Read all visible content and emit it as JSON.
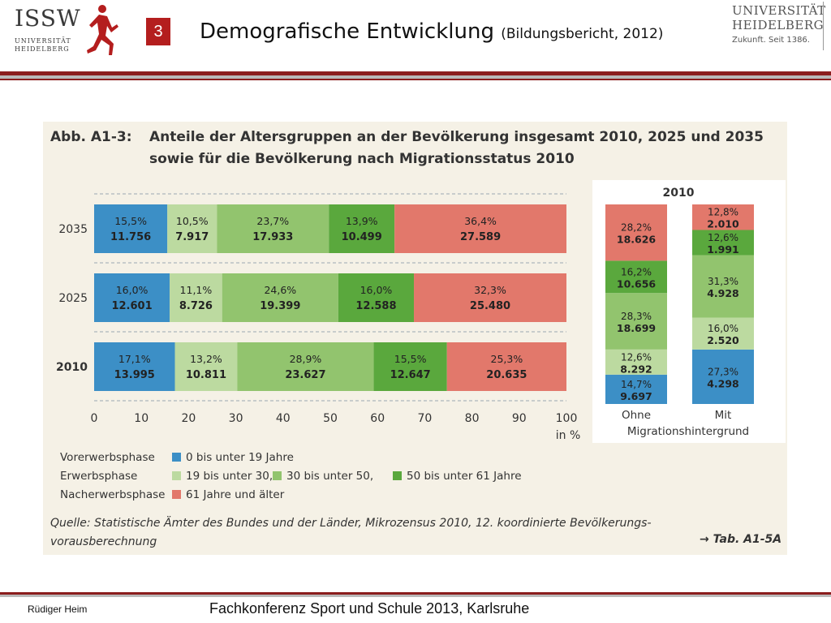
{
  "header": {
    "slide_number": "3",
    "title": "Demografische Entwicklung",
    "subtitle": "(Bildungsbericht, 2012)",
    "logo_left": {
      "name": "ISSW",
      "line1": "UNIVERSITÄT",
      "line2": "HEIDELBERG"
    },
    "logo_right": {
      "line1": "UNIVERSITÄT",
      "line2": "HEIDELBERG",
      "line3": "Zukunft. Seit 1386."
    },
    "accent_color": "#8b1d1d"
  },
  "figure": {
    "label": "Abb. A1-3:",
    "title_line1": "Anteile der Altersgruppen an der Bevölkerung insgesamt 2010, 2025 und 2035",
    "title_line2": "sowie für die Bevölkerung nach Migrationsstatus 2010",
    "x_unit": "in %"
  },
  "chart_data": [
    {
      "type": "bar",
      "orientation": "horizontal-stacked",
      "categories": [
        "2035",
        "2025",
        "2010"
      ],
      "series": [
        {
          "name": "0 bis unter 19 Jahre",
          "color": "#3c8fc6",
          "percent_labels": [
            "15,5%",
            "16,0%",
            "17,1%"
          ],
          "values": [
            15.5,
            16.0,
            17.1
          ],
          "abs_labels": [
            "11.756",
            "12.601",
            "13.995"
          ]
        },
        {
          "name": "19 bis unter 30,",
          "color": "#bcdaa0",
          "percent_labels": [
            "10,5%",
            "11,1%",
            "13,2%"
          ],
          "values": [
            10.5,
            11.1,
            13.2
          ],
          "abs_labels": [
            "7.917",
            "8.726",
            "10.811"
          ]
        },
        {
          "name": "30 bis unter 50,",
          "color": "#92c46e",
          "percent_labels": [
            "23,7%",
            "24,6%",
            "28,9%"
          ],
          "values": [
            23.7,
            24.6,
            28.9
          ],
          "abs_labels": [
            "17.933",
            "19.399",
            "23.627"
          ]
        },
        {
          "name": "50 bis unter 61 Jahre",
          "color": "#5aa83d",
          "percent_labels": [
            "13,9%",
            "16,0%",
            "15,5%"
          ],
          "values": [
            13.9,
            16.0,
            15.5
          ],
          "abs_labels": [
            "10.499",
            "12.588",
            "12.647"
          ]
        },
        {
          "name": "61 Jahre und älter",
          "color": "#e2786b",
          "percent_labels": [
            "36,4%",
            "32,3%",
            "25,3%"
          ],
          "values": [
            36.4,
            32.3,
            25.3
          ],
          "abs_labels": [
            "27.589",
            "25.480",
            "20.635"
          ]
        }
      ],
      "x_ticks": [
        "0",
        "10",
        "20",
        "30",
        "40",
        "50",
        "60",
        "70",
        "80",
        "90",
        "100"
      ],
      "xlim": [
        0,
        100
      ],
      "xlabel": "in %",
      "grid": "dashed horizontal guides"
    },
    {
      "type": "bar",
      "orientation": "vertical-stacked",
      "title": "2010",
      "categories": [
        "Ohne Migrationshintergrund",
        "Mit Migrationshintergrund"
      ],
      "category_lines": [
        [
          "Ohne",
          "Migrationshintergrund"
        ],
        [
          "Mit",
          ""
        ]
      ],
      "series": [
        {
          "name": "0 bis unter 19 Jahre",
          "color": "#3c8fc6",
          "percent_labels": [
            "14,7%",
            "27,3%"
          ],
          "values": [
            14.7,
            27.3
          ],
          "abs_labels": [
            "9.697",
            "4.298"
          ]
        },
        {
          "name": "19 bis unter 30,",
          "color": "#bcdaa0",
          "percent_labels": [
            "12,6%",
            "16,0%"
          ],
          "values": [
            12.6,
            16.0
          ],
          "abs_labels": [
            "8.292",
            "2.520"
          ]
        },
        {
          "name": "30 bis unter 50,",
          "color": "#92c46e",
          "percent_labels": [
            "28,3%",
            "31,3%"
          ],
          "values": [
            28.3,
            31.3
          ],
          "abs_labels": [
            "18.699",
            "4.928"
          ]
        },
        {
          "name": "50 bis unter 61 Jahre",
          "color": "#5aa83d",
          "percent_labels": [
            "16,2%",
            "12,6%"
          ],
          "values": [
            16.2,
            12.6
          ],
          "abs_labels": [
            "10.656",
            "1.991"
          ]
        },
        {
          "name": "61 Jahre und älter",
          "color": "#e2786b",
          "percent_labels": [
            "28,2%",
            "12,8%"
          ],
          "values": [
            28.2,
            12.8
          ],
          "abs_labels": [
            "18.626",
            "2.010"
          ]
        }
      ]
    }
  ],
  "legend": {
    "rows": [
      {
        "phase": "Vorerwerbsphase",
        "items": [
          {
            "label": "0 bis unter 19 Jahre",
            "color": "#3c8fc6"
          }
        ]
      },
      {
        "phase": "Erwerbsphase",
        "items": [
          {
            "label": "19 bis unter 30,",
            "color": "#bcdaa0"
          },
          {
            "label": "30 bis unter 50,",
            "color": "#92c46e"
          },
          {
            "label": "50 bis unter 61 Jahre",
            "color": "#5aa83d"
          }
        ]
      },
      {
        "phase": "Nacherwerbsphase",
        "items": [
          {
            "label": "61 Jahre und älter",
            "color": "#e2786b"
          }
        ]
      }
    ]
  },
  "source": {
    "line1": "Quelle: Statistische Ämter des Bundes und der Länder, Mikrozensus 2010, 12. koordinierte Bevölkerungs-",
    "line2": "vorausberechnung",
    "table_ref": "→ Tab. A1-5A"
  },
  "footer": {
    "author": "Rüdiger Heim",
    "event": "Fachkonferenz Sport und Schule 2013, Karlsruhe"
  }
}
